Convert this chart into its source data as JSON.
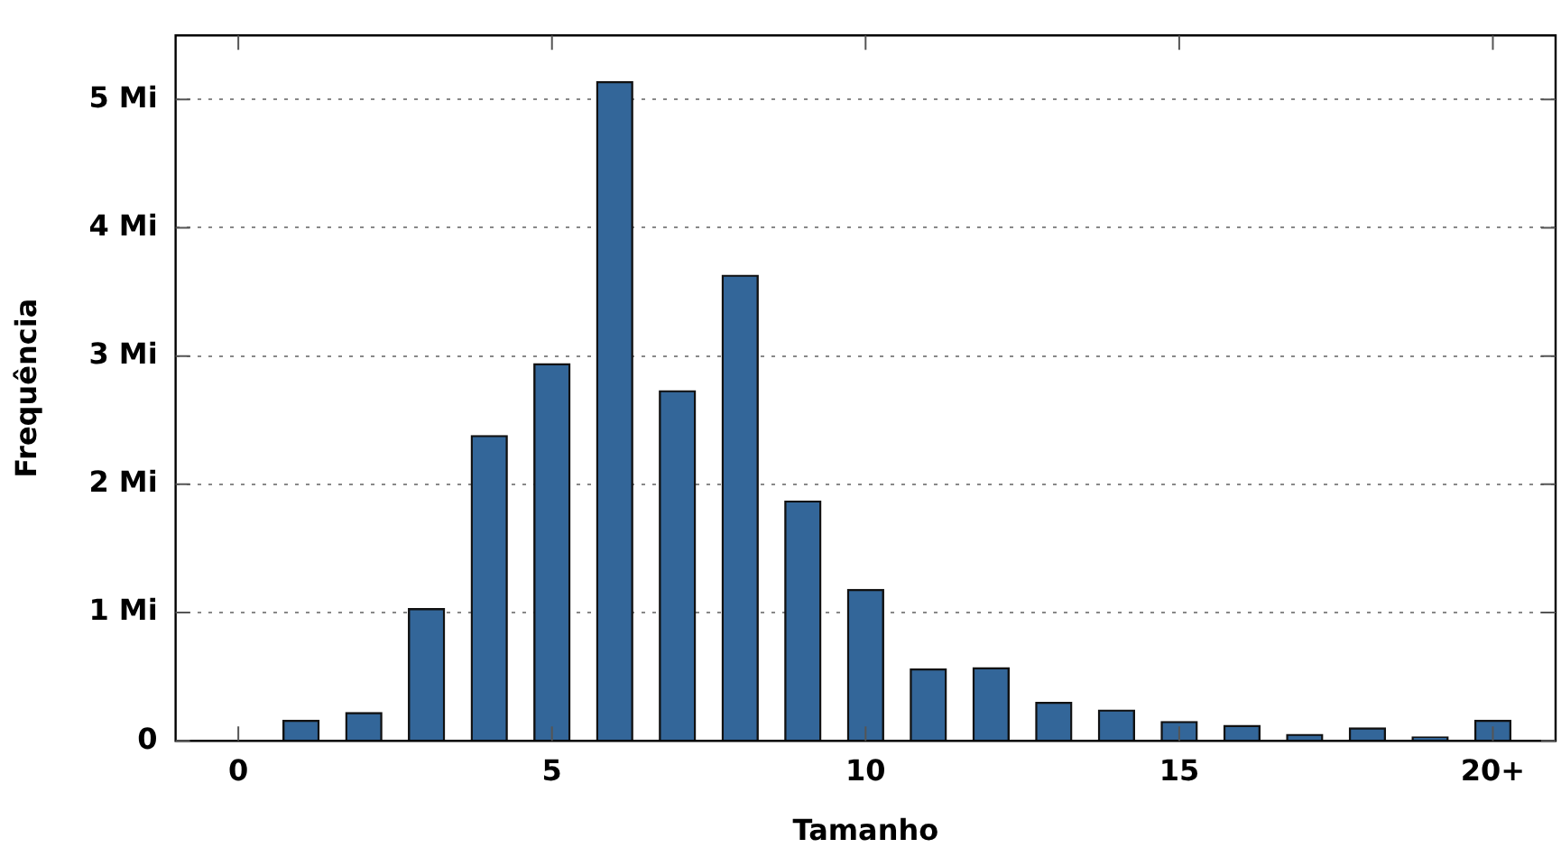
{
  "chart_data": {
    "type": "bar",
    "xlabel": "Tamanho",
    "ylabel": "Frequência",
    "x": [
      1,
      2,
      3,
      4,
      5,
      6,
      7,
      8,
      9,
      10,
      11,
      12,
      13,
      14,
      15,
      16,
      17,
      18,
      19,
      20
    ],
    "values": [
      0.16,
      0.22,
      1.03,
      2.38,
      2.94,
      5.14,
      2.73,
      3.63,
      1.87,
      1.18,
      0.56,
      0.57,
      0.3,
      0.24,
      0.15,
      0.12,
      0.05,
      0.1,
      0.03,
      0.16
    ],
    "color": "#336699",
    "xlim": [
      -1,
      21
    ],
    "xticks": [
      0,
      5,
      10,
      15,
      {
        "value": 20,
        "label": "20+"
      }
    ],
    "ylim": [
      0,
      5.5
    ],
    "yticks": [
      0,
      {
        "value": 1,
        "label": "1 Mi"
      },
      {
        "value": 2,
        "label": "2 Mi"
      },
      {
        "value": 3,
        "label": "3 Mi"
      },
      {
        "value": 4,
        "label": "4 Mi"
      },
      {
        "value": 5,
        "label": "5 Mi"
      }
    ],
    "grid": "y",
    "legend": false
  }
}
